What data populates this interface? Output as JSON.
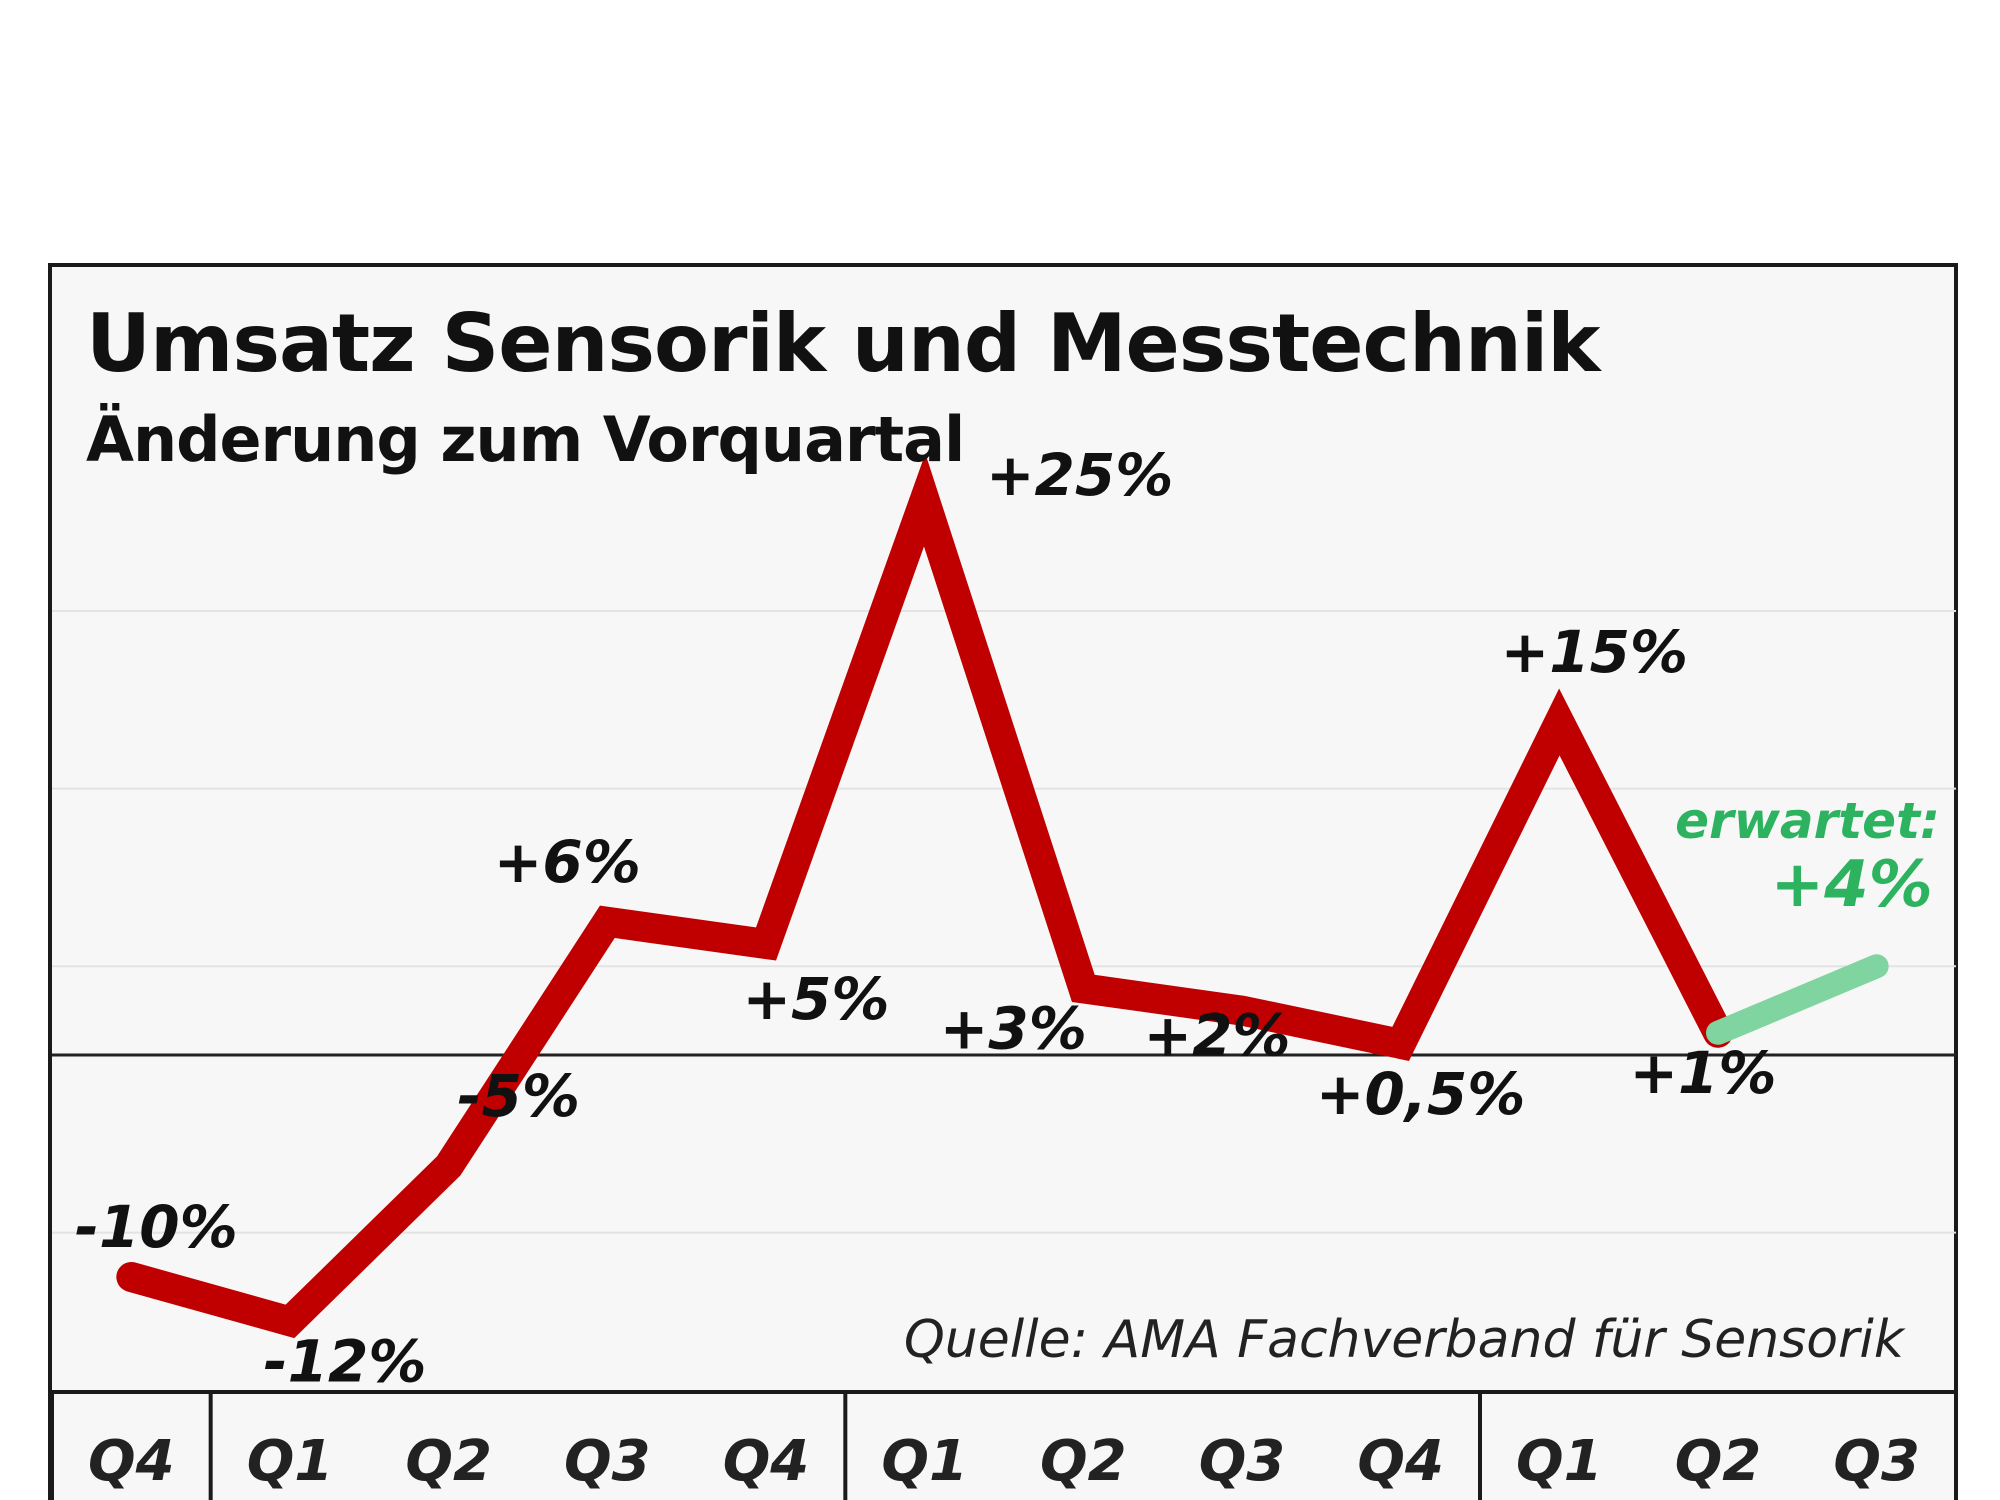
{
  "chart_data": {
    "type": "line",
    "title": "Umsatz Sensorik und Messtechnik",
    "subtitle": "Änderung zum Vorquartal",
    "categories": [
      "Q4",
      "Q1",
      "Q2",
      "Q3",
      "Q4",
      "Q1",
      "Q2",
      "Q3",
      "Q4",
      "Q1",
      "Q2",
      "Q3"
    ],
    "series": [
      {
        "values": [
          -10,
          -12,
          -5,
          6,
          5,
          25,
          3,
          2,
          0.5,
          15,
          1,
          null
        ],
        "color": "#c00000"
      },
      {
        "values": [
          null,
          null,
          null,
          null,
          null,
          null,
          null,
          null,
          null,
          null,
          1,
          4
        ],
        "color": "#7fd4a0"
      }
    ],
    "data_labels": [
      "-10%",
      "-12%",
      "-5%",
      "+6%",
      "+5%",
      "+25%",
      "+3%",
      "+2%",
      "+0,5%",
      "+15%",
      "+1%",
      "+4%"
    ],
    "forecast_label": "erwartet:",
    "forecast_color": "#2db35f",
    "source": "Quelle: AMA Fachverband für Sensorik",
    "ylim": [
      -15,
      25
    ],
    "grid": true,
    "legend": "none"
  }
}
